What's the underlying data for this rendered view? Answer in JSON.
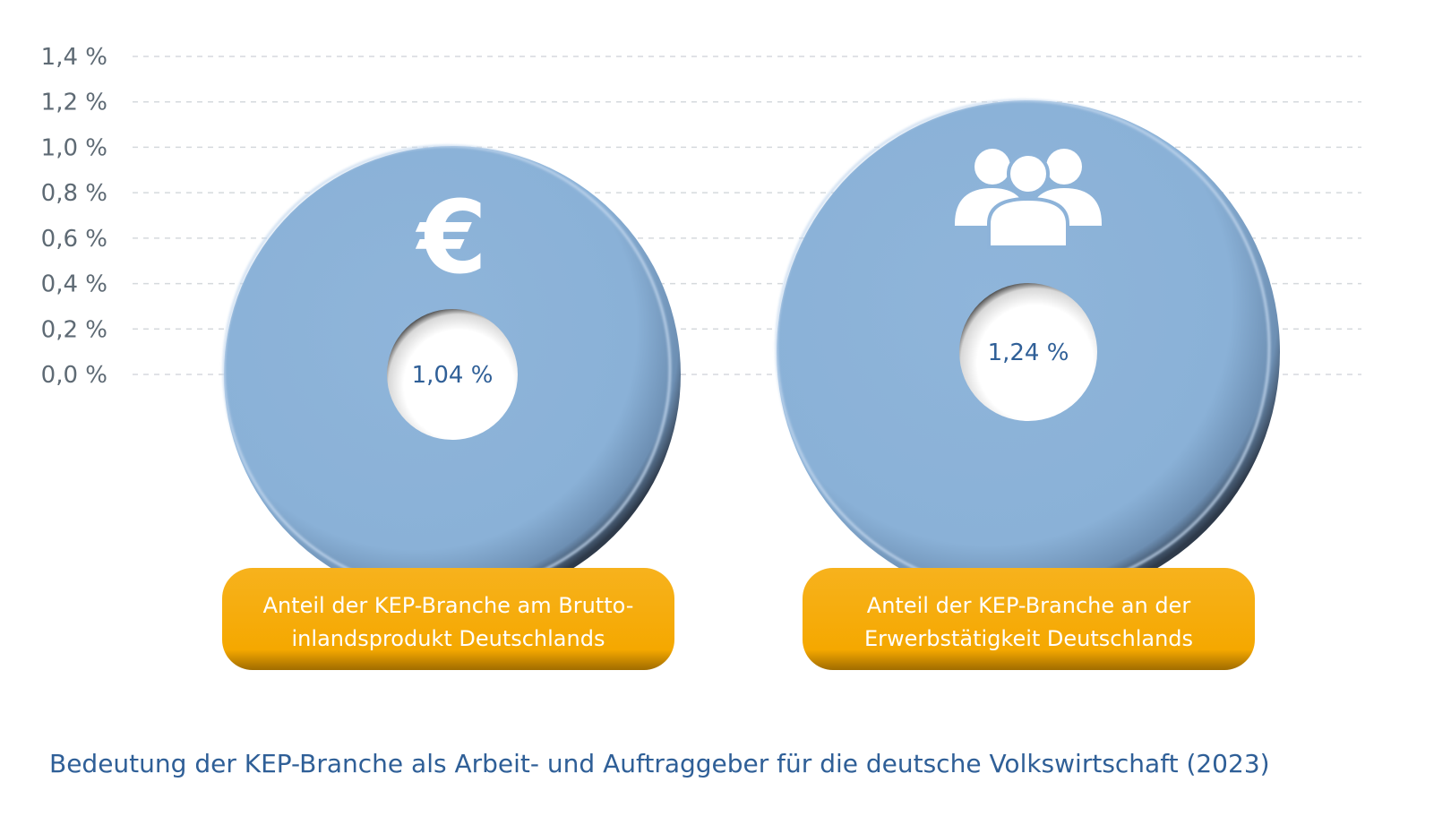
{
  "chart_data": {
    "type": "other",
    "y_ticks": [
      "1,4 %",
      "1,2 %",
      "1,0 %",
      "0,8 %",
      "0,6 %",
      "0,4 %",
      "0,2 %",
      "0,0 %"
    ],
    "ylim": [
      0,
      1.4
    ],
    "grid": "horizontal dashed",
    "items": [
      {
        "value": 1.04,
        "value_label": "1,04 %",
        "icon": "euro-icon",
        "label_lines": [
          "Anteil der KEP-Branche am Brutto-",
          "inlandsprodukt Deutschlands"
        ]
      },
      {
        "value": 1.24,
        "value_label": "1,24 %",
        "icon": "people-group-icon",
        "label_lines": [
          "Anteil der KEP-Branche an der",
          "Erwerbstätigkeit Deutschlands"
        ]
      }
    ],
    "caption": "Bedeutung der KEP-Branche als Arbeit- und Auftraggeber für die deutsche Volkswirtschaft (2023)"
  },
  "colors": {
    "disc": "#8db3d9",
    "pill": "#f5a800",
    "value_text": "#2f5f97",
    "tick_text": "#5e6a74",
    "grid": "#d5d9dd"
  }
}
